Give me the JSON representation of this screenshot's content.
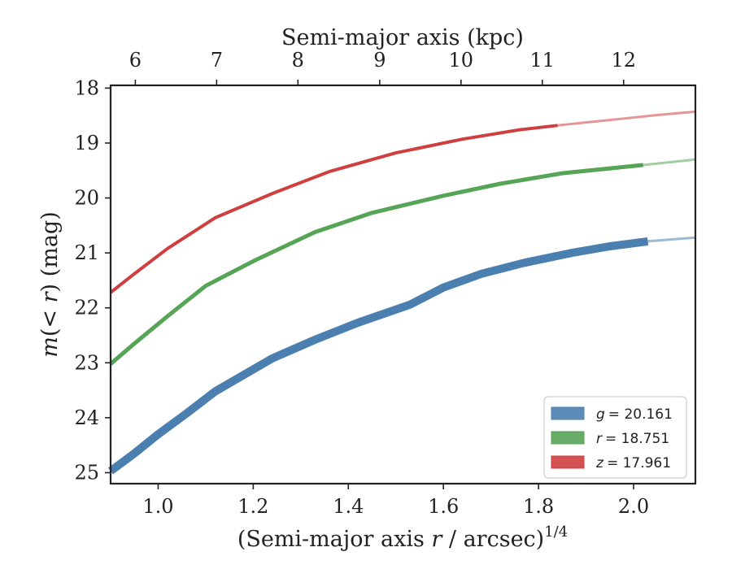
{
  "chart_data": {
    "type": "line",
    "xlabel_prefix": "(Semi-major axis ",
    "xlabel_var": "r",
    "xlabel_mid": " / arcsec)",
    "xlabel_sup": "1/4",
    "top_xlabel": "Semi-major axis (kpc)",
    "ylabel_prefix": "m",
    "ylabel_mid": "(< ",
    "ylabel_var": "r",
    "ylabel_suffix": ") (mag)",
    "xlim": [
      0.9,
      2.13
    ],
    "ylim": [
      25.2,
      17.95
    ],
    "y_inverted": true,
    "x_ticks": [
      1.0,
      1.2,
      1.4,
      1.6,
      1.8,
      2.0
    ],
    "x_tick_labels": [
      "1.0",
      "1.2",
      "1.4",
      "1.6",
      "1.8",
      "2.0"
    ],
    "y_ticks": [
      18,
      19,
      20,
      21,
      22,
      23,
      24,
      25
    ],
    "y_tick_labels": [
      "18",
      "19",
      "20",
      "21",
      "22",
      "23",
      "24",
      "25"
    ],
    "top_x_ticks": [
      5.95,
      7.25,
      7.8,
      9.0,
      10.0,
      11.0,
      12.0
    ],
    "top_x_tick_positions": [
      0.952,
      1.123,
      1.294,
      1.466,
      1.637,
      1.808,
      1.979
    ],
    "top_x_tick_labels": [
      "6",
      "7",
      "8",
      "9",
      "10",
      "11",
      "12"
    ],
    "legend_position": "lower-right",
    "grid": false,
    "series": [
      {
        "name": "g = 20.161",
        "legend_var": "g",
        "legend_value": "= 20.161",
        "color": "#4a7fb0",
        "band_width": 10,
        "x": [
          0.9,
          0.95,
          1.0,
          1.06,
          1.12,
          1.24,
          1.33,
          1.42,
          1.53,
          1.6,
          1.68,
          1.77,
          1.87,
          1.95,
          2.03,
          2.13
        ],
        "y": [
          24.97,
          24.65,
          24.3,
          23.92,
          23.52,
          22.92,
          22.58,
          22.27,
          21.94,
          21.63,
          21.38,
          21.18,
          21.0,
          20.88,
          20.79,
          20.72
        ],
        "faded_from_index": 14
      },
      {
        "name": "r = 18.751",
        "legend_var": "r",
        "legend_value": "= 18.751",
        "color": "#56a456",
        "band_width": 5,
        "x": [
          0.9,
          0.95,
          1.02,
          1.1,
          1.2,
          1.33,
          1.45,
          1.6,
          1.72,
          1.85,
          2.02,
          2.13
        ],
        "y": [
          23.02,
          22.65,
          22.15,
          21.6,
          21.15,
          20.62,
          20.27,
          19.96,
          19.74,
          19.55,
          19.4,
          19.3
        ],
        "faded_from_index": 10
      },
      {
        "name": "z = 17.961",
        "legend_var": "z",
        "legend_value": "= 17.961",
        "color": "#cf3f3f",
        "band_width": 4,
        "x": [
          0.9,
          0.95,
          1.02,
          1.12,
          1.24,
          1.36,
          1.5,
          1.64,
          1.76,
          1.84,
          1.95,
          2.05,
          2.13
        ],
        "y": [
          21.72,
          21.38,
          20.92,
          20.36,
          19.92,
          19.52,
          19.18,
          18.93,
          18.76,
          18.68,
          18.58,
          18.49,
          18.43
        ],
        "faded_from_index": 9
      }
    ]
  }
}
